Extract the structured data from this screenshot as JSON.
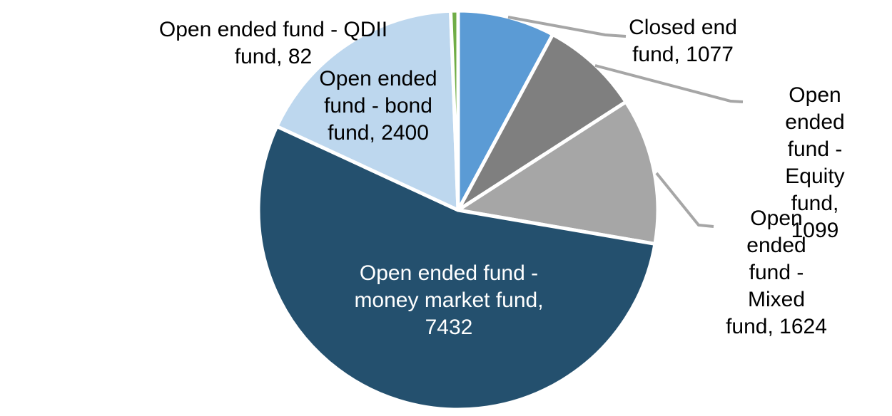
{
  "chart_data": {
    "type": "pie",
    "title": "",
    "legend": "none",
    "label_format": "category, value",
    "direction": "clockwise",
    "start_angle_deg": 0,
    "total": 13714,
    "colors": {
      "slice_border": "#FFFFFF",
      "leader_line": "#A6A6A6",
      "background": "#FFFFFF"
    },
    "slices": [
      {
        "name": "Closed end fund",
        "value": 1077,
        "color": "#5B9BD5",
        "label_text": "Closed end\nfund, 1077",
        "label_color": "#000000"
      },
      {
        "name": "Open ended fund - Equity fund",
        "value": 1099,
        "color": "#7F7F7F",
        "label_text": "Open ended\nfund - Equity\nfund, 1099",
        "label_color": "#000000"
      },
      {
        "name": "Open ended fund - Mixed fund",
        "value": 1624,
        "color": "#A6A6A6",
        "label_text": "Open ended\nfund - Mixed\nfund, 1624",
        "label_color": "#000000"
      },
      {
        "name": "Open ended fund - money market fund",
        "value": 7432,
        "color": "#24506E",
        "label_text": "Open ended fund -\nmoney market fund,\n7432",
        "label_color": "#FFFFFF"
      },
      {
        "name": "Open ended fund - bond fund",
        "value": 2400,
        "color": "#BDD7EE",
        "label_text": "Open ended\nfund - bond\nfund, 2400",
        "label_color": "#000000"
      },
      {
        "name": "Open ended fund - QDII fund",
        "value": 82,
        "color": "#70AD47",
        "label_text": "Open ended fund - QDII\nfund, 82",
        "label_color": "#000000"
      }
    ]
  }
}
